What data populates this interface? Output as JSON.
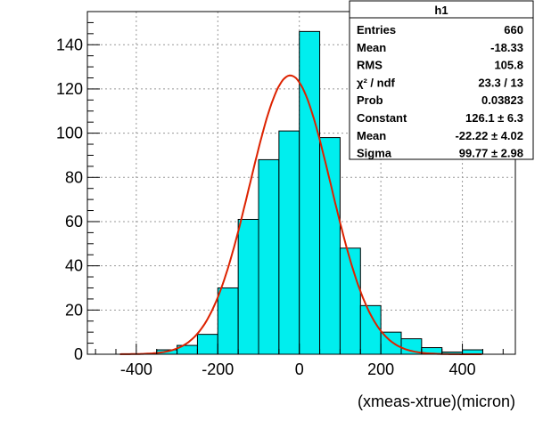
{
  "chart_data": {
    "type": "bar",
    "histogram_name": "h1",
    "xlabel": "(xmeas-xtrue)(micron)",
    "ylabel": "",
    "xlim": [
      -520,
      530
    ],
    "ylim": [
      0,
      155
    ],
    "x_ticks": [
      -400,
      -200,
      0,
      200,
      400
    ],
    "y_ticks": [
      0,
      20,
      40,
      60,
      80,
      100,
      120,
      140
    ],
    "bin_width": 50,
    "bins": [
      {
        "x0": -400,
        "value": 0
      },
      {
        "x0": -350,
        "value": 2
      },
      {
        "x0": -300,
        "value": 4
      },
      {
        "x0": -250,
        "value": 9
      },
      {
        "x0": -200,
        "value": 30
      },
      {
        "x0": -150,
        "value": 61
      },
      {
        "x0": -100,
        "value": 88
      },
      {
        "x0": -50,
        "value": 101
      },
      {
        "x0": 0,
        "value": 146
      },
      {
        "x0": 50,
        "value": 98
      },
      {
        "x0": 100,
        "value": 48
      },
      {
        "x0": 150,
        "value": 22
      },
      {
        "x0": 200,
        "value": 10
      },
      {
        "x0": 250,
        "value": 7
      },
      {
        "x0": 300,
        "value": 3
      },
      {
        "x0": 350,
        "value": 1
      },
      {
        "x0": 400,
        "value": 2
      }
    ],
    "fit": {
      "function": "gaus",
      "constant": 126.1,
      "mean": -22.22,
      "sigma": 99.77,
      "color": "#dd2200"
    },
    "fill_color": "#00eeee",
    "grid": true,
    "stats_box": {
      "title": "h1",
      "rows": [
        {
          "label": "Entries",
          "value": "660"
        },
        {
          "label": "Mean",
          "value": "-18.33"
        },
        {
          "label": "RMS",
          "value": "105.8"
        },
        {
          "label": "χ² / ndf",
          "value": "23.3 / 13"
        },
        {
          "label": "Prob",
          "value": "0.03823"
        },
        {
          "label": "Constant",
          "value": "126.1 ± 6.3"
        },
        {
          "label": "Mean",
          "value": "-22.22 ± 4.02"
        },
        {
          "label": "Sigma",
          "value": "99.77 ± 2.98"
        }
      ]
    }
  }
}
